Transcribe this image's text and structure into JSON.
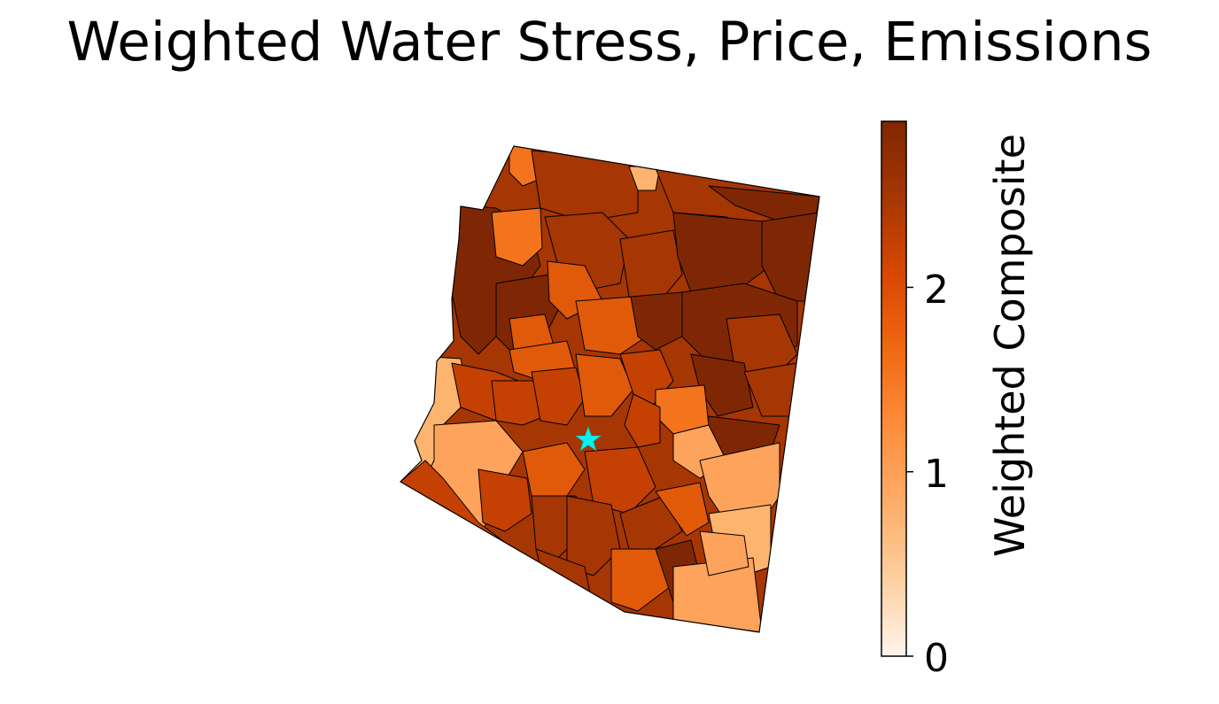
{
  "map": {
    "title": "Weighted Water Stress, Price, Emissions",
    "marker_icon": "star-icon",
    "marker_color": "#00f5f5",
    "region_colors": {
      "darkest": "#7f2704",
      "dark": "#a63603",
      "mid_dark": "#c44103",
      "mid": "#e05a0a",
      "mid_light": "#f3741c",
      "light": "#fda35b",
      "lighter": "#fdb46e"
    }
  },
  "colorbar": {
    "title": "Weighted Composite",
    "ticks": [
      "0",
      "1",
      "2"
    ],
    "range": [
      0,
      2.9
    ],
    "colormap": "Oranges",
    "stops": [
      "#fff5eb",
      "#fdd0a2",
      "#fdae6b",
      "#fd8d3c",
      "#f16913",
      "#d94801",
      "#a63603",
      "#7f2704"
    ]
  }
}
